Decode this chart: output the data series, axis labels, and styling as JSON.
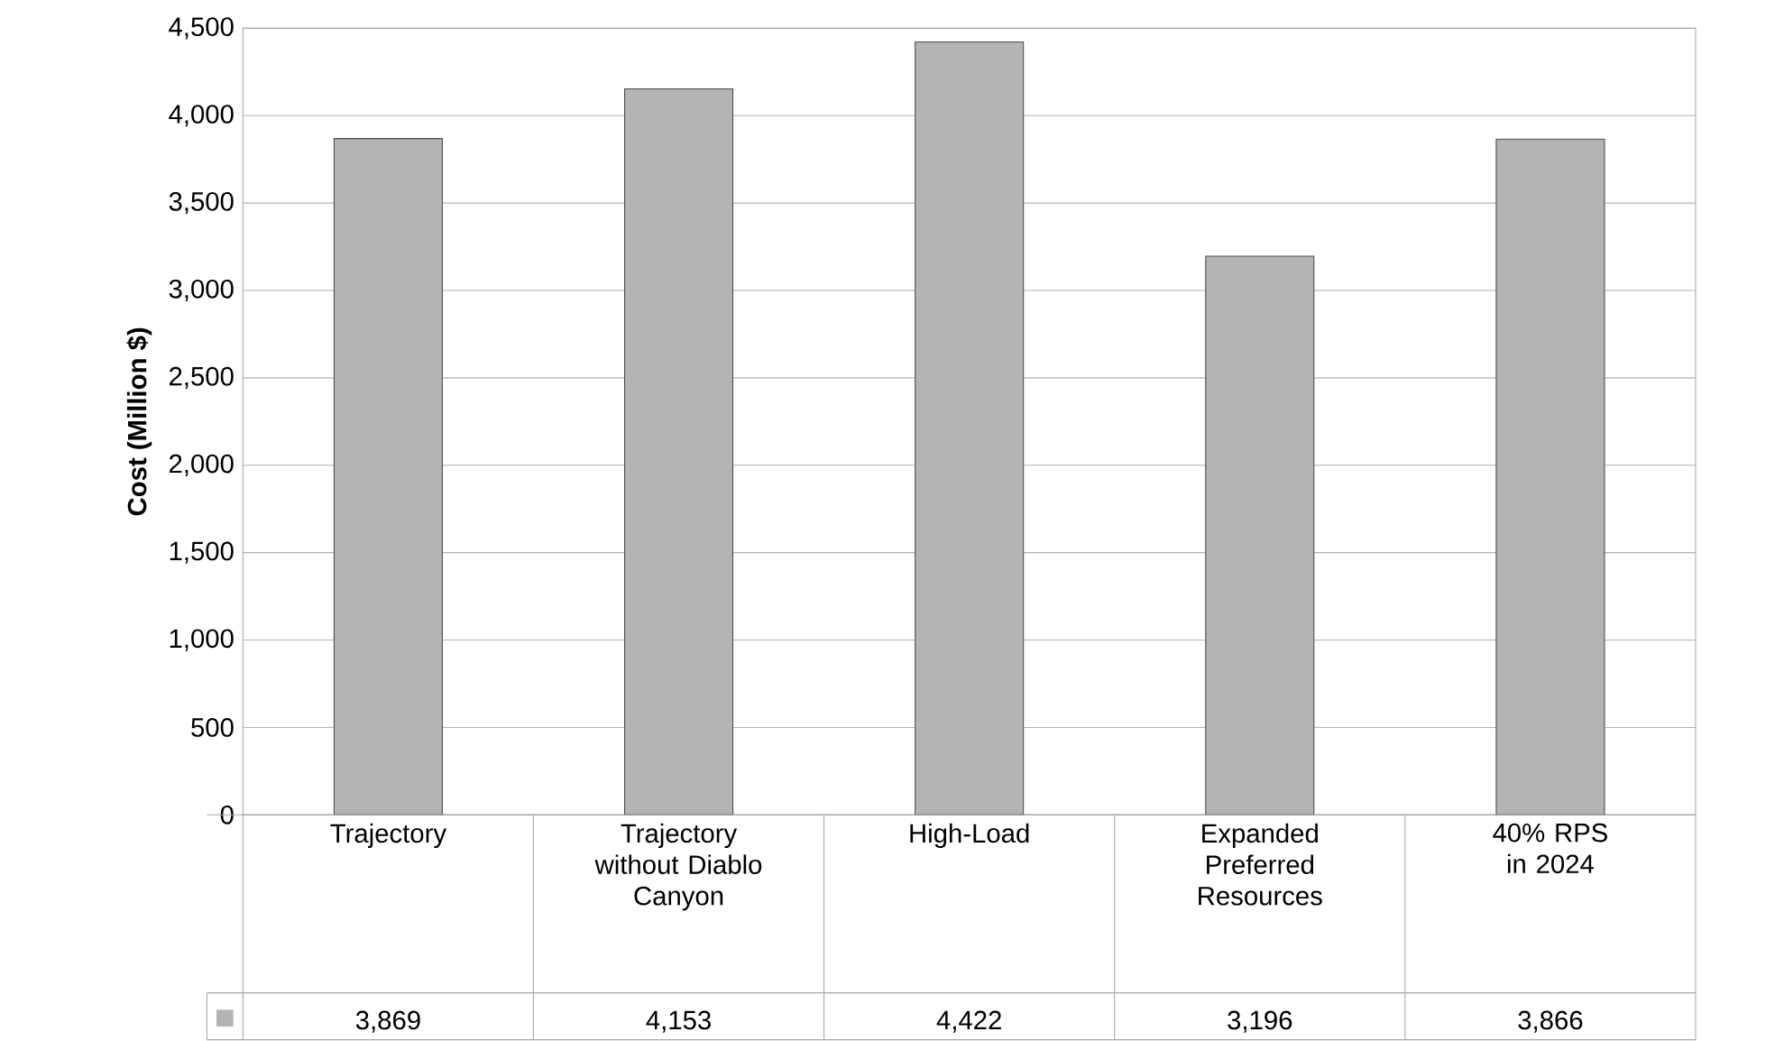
{
  "chart_data": {
    "type": "bar",
    "ylabel": "Cost (Million $)",
    "categories": [
      "Trajectory",
      "Trajectory without Diablo Canyon",
      "High-Load",
      "Expanded Preferred Resources",
      "40% RPS in 2024"
    ],
    "values": [
      3869,
      4153,
      4422,
      3196,
      3866
    ],
    "value_labels": [
      "3,869",
      "4,153",
      "4,422",
      "3,196",
      "3,866"
    ],
    "color": "#b4b4b4",
    "ylim": [
      0,
      4500
    ],
    "yticks": [
      0,
      {
        "value": 500,
        "label": "500"
      },
      {
        "value": 1000,
        "label": "1,000"
      },
      {
        "value": 1500,
        "label": "1,500"
      },
      {
        "value": 2000,
        "label": "2,000"
      },
      {
        "value": 2500,
        "label": "2,500"
      },
      {
        "value": 3000,
        "label": "3,000"
      },
      {
        "value": 3500,
        "label": "3,500"
      },
      {
        "value": 4000,
        "label": "4,000"
      },
      {
        "value": 4500,
        "label": "4,500"
      }
    ],
    "grid": "y"
  }
}
